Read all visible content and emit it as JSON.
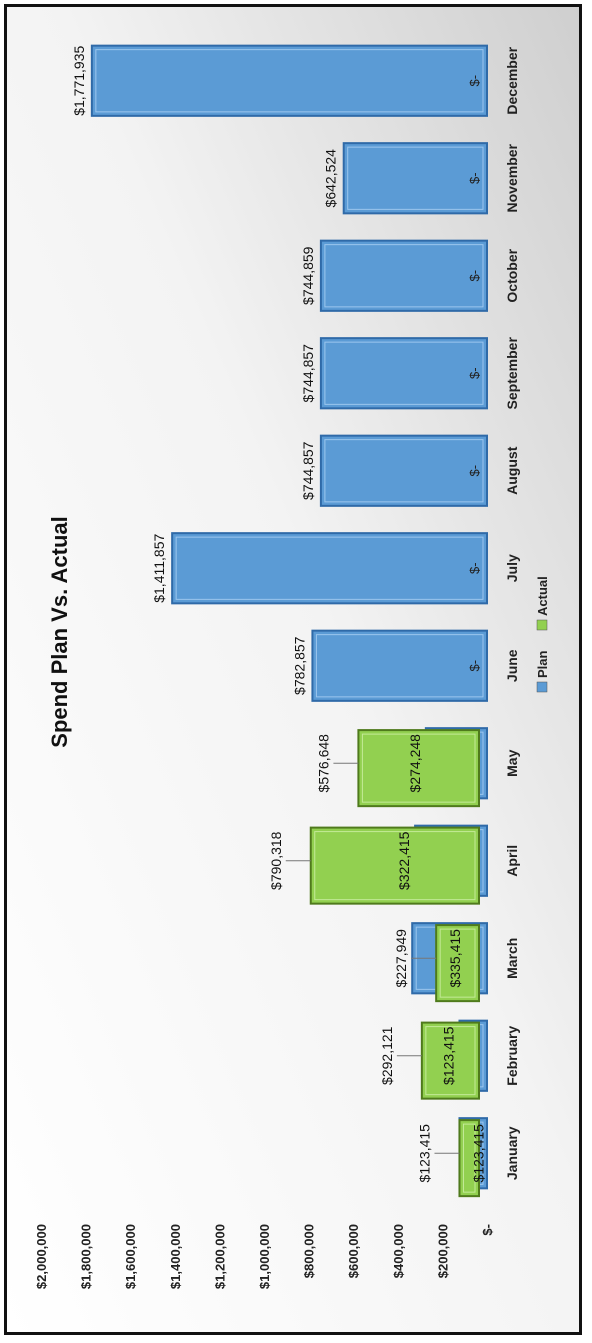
{
  "chart_data": {
    "type": "bar",
    "title": "Spend Plan Vs. Actual",
    "categories": [
      "January",
      "February",
      "March",
      "April",
      "May",
      "June",
      "July",
      "August",
      "September",
      "October",
      "November",
      "December"
    ],
    "series": [
      {
        "name": "Plan",
        "color": "#5b9bd5",
        "values": [
          123415,
          123415,
          335415,
          322415,
          274248,
          782857,
          1411857,
          744857,
          744857,
          744859,
          642524,
          1771935
        ],
        "labels": [
          "$123,415",
          "$123,415",
          "$335,415",
          "$322,415",
          "$274,248",
          "$782,857",
          "$1,411,857",
          "$744,857",
          "$744,857",
          "$744,859",
          "$642,524",
          "$1,771,935"
        ]
      },
      {
        "name": "Actual",
        "color": "#92d050",
        "values": [
          123415,
          292121,
          227949,
          790318,
          576648,
          0,
          0,
          0,
          0,
          0,
          0,
          0
        ],
        "labels": [
          "$123,415",
          "$292,121",
          "$227,949",
          "$790,318",
          "$576,648",
          "$-",
          "$-",
          "$-",
          "$-",
          "$-",
          "$-",
          "$-"
        ]
      }
    ],
    "ylim": [
      0,
      2000000
    ],
    "yticks": [
      0,
      200000,
      400000,
      600000,
      800000,
      1000000,
      1200000,
      1400000,
      1600000,
      1800000,
      2000000
    ],
    "ytick_labels": [
      "$-",
      "$200,000",
      "$400,000",
      "$600,000",
      "$800,000",
      "$1,000,000",
      "$1,200,000",
      "$1,400,000",
      "$1,600,000",
      "$1,800,000",
      "$2,000,000"
    ],
    "legend_position": "bottom",
    "grid": false,
    "orientation": "rotated 90 degrees counter-clockwise"
  }
}
